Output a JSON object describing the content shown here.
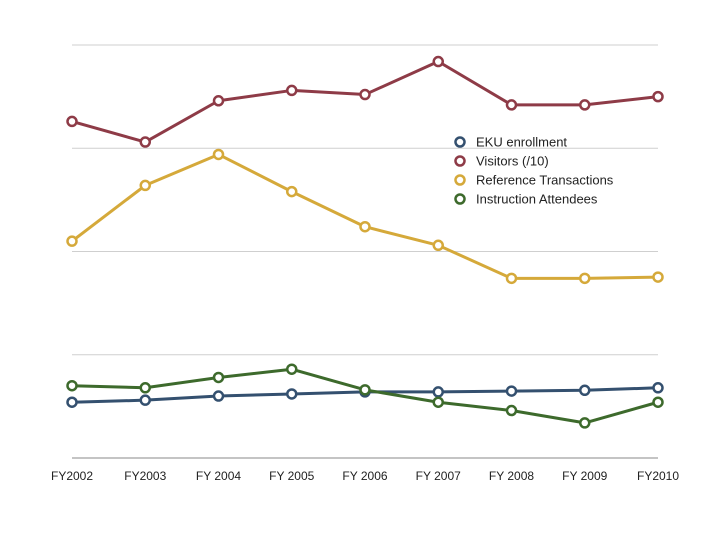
{
  "chart_data": {
    "type": "line",
    "title": "",
    "xlabel": "",
    "ylabel": "",
    "categories": [
      "FY2002",
      "FY2003",
      "FY 2004",
      "FY 2005",
      "FY 2006",
      "FY 2007",
      "FY 2008",
      "FY 2009",
      "FY2010"
    ],
    "ylim": [
      0,
      100
    ],
    "grid": true,
    "legend_position": "center-right",
    "series": [
      {
        "name": "EKU enrollment",
        "color": "#34506f",
        "values": [
          13.5,
          14,
          15,
          15.5,
          16,
          16,
          16.2,
          16.4,
          17
        ]
      },
      {
        "name": "Visitors (/10)",
        "color": "#8e3b47",
        "values": [
          81.5,
          76.5,
          86.5,
          89,
          88,
          96,
          85.5,
          85.5,
          87.5
        ]
      },
      {
        "name": "Reference Transactions",
        "color": "#d5a93a",
        "values": [
          52.5,
          66,
          73.5,
          64.5,
          56,
          51.5,
          43.5,
          43.5,
          43.8
        ]
      },
      {
        "name": "Instruction Attendees",
        "color": "#3d6a2c",
        "values": [
          17.5,
          17,
          19.5,
          21.5,
          16.5,
          13.5,
          11.5,
          8.5,
          13.5
        ]
      }
    ]
  }
}
